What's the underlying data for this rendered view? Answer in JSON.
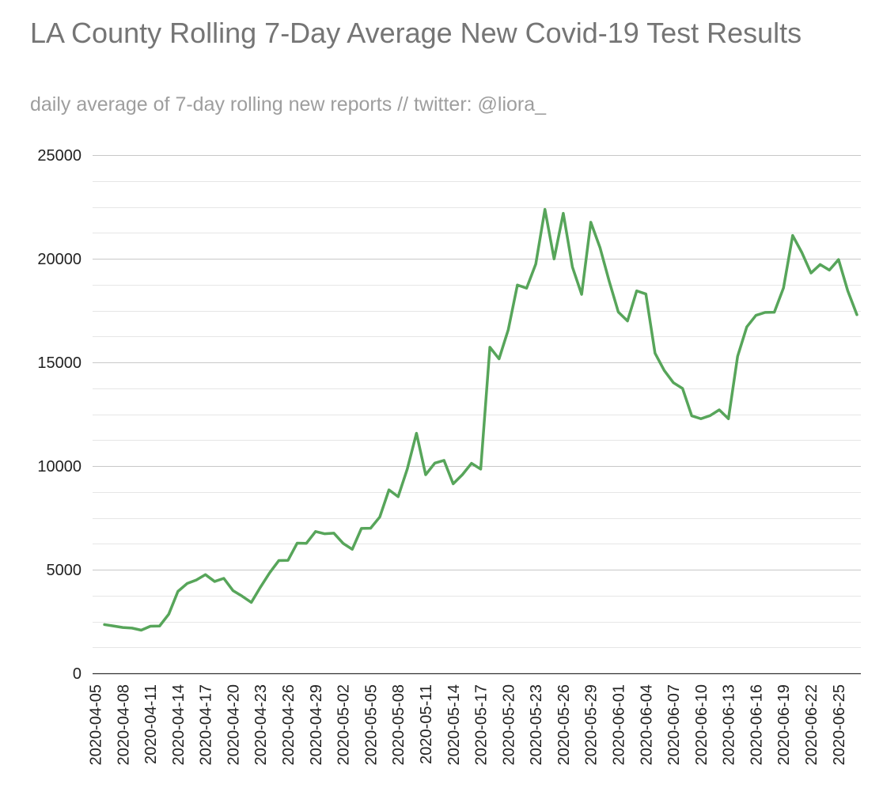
{
  "chart_data": {
    "type": "line",
    "title": "LA County Rolling 7-Day Average New Covid-19 Test Results",
    "subtitle": "daily average of 7-day rolling new reports // twitter: @liora_",
    "xlabel": "",
    "ylabel": "",
    "ylim": [
      0,
      25000
    ],
    "y_ticks": [
      "0",
      "5000",
      "10000",
      "15000",
      "20000",
      "25000"
    ],
    "grid": true,
    "x_tick_labels": [
      "2020-04-05",
      "2020-04-08",
      "2020-04-11",
      "2020-04-14",
      "2020-04-17",
      "2020-04-20",
      "2020-04-23",
      "2020-04-26",
      "2020-04-29",
      "2020-05-02",
      "2020-05-05",
      "2020-05-08",
      "2020-05-11",
      "2020-05-14",
      "2020-05-17",
      "2020-05-20",
      "2020-05-23",
      "2020-05-26",
      "2020-05-29",
      "2020-06-01",
      "2020-06-04",
      "2020-06-07",
      "2020-06-10",
      "2020-06-13",
      "2020-06-16",
      "2020-06-19",
      "2020-06-22",
      "2020-06-25"
    ],
    "x_start": "2020-04-05",
    "x_end": "2020-06-27",
    "series": [
      {
        "color": "#57a55a",
        "points": [
          [
            "2020-04-06",
            2350
          ],
          [
            "2020-04-07",
            2280
          ],
          [
            "2020-04-08",
            2210
          ],
          [
            "2020-04-09",
            2180
          ],
          [
            "2020-04-10",
            2080
          ],
          [
            "2020-04-11",
            2270
          ],
          [
            "2020-04-12",
            2280
          ],
          [
            "2020-04-13",
            2850
          ],
          [
            "2020-04-14",
            3950
          ],
          [
            "2020-04-15",
            4330
          ],
          [
            "2020-04-16",
            4500
          ],
          [
            "2020-04-17",
            4760
          ],
          [
            "2020-04-18",
            4430
          ],
          [
            "2020-04-19",
            4580
          ],
          [
            "2020-04-20",
            3990
          ],
          [
            "2020-04-21",
            3720
          ],
          [
            "2020-04-22",
            3420
          ],
          [
            "2020-04-23",
            4160
          ],
          [
            "2020-04-24",
            4850
          ],
          [
            "2020-04-25",
            5440
          ],
          [
            "2020-04-26",
            5450
          ],
          [
            "2020-04-27",
            6280
          ],
          [
            "2020-04-28",
            6270
          ],
          [
            "2020-04-29",
            6840
          ],
          [
            "2020-04-30",
            6730
          ],
          [
            "2020-05-01",
            6760
          ],
          [
            "2020-05-02",
            6270
          ],
          [
            "2020-05-03",
            5980
          ],
          [
            "2020-05-04",
            6990
          ],
          [
            "2020-05-05",
            7000
          ],
          [
            "2020-05-06",
            7540
          ],
          [
            "2020-05-07",
            8850
          ],
          [
            "2020-05-08",
            8520
          ],
          [
            "2020-05-09",
            9860
          ],
          [
            "2020-05-10",
            11580
          ],
          [
            "2020-05-11",
            9580
          ],
          [
            "2020-05-12",
            10140
          ],
          [
            "2020-05-13",
            10270
          ],
          [
            "2020-05-14",
            9140
          ],
          [
            "2020-05-15",
            9580
          ],
          [
            "2020-05-16",
            10130
          ],
          [
            "2020-05-17",
            9850
          ],
          [
            "2020-05-18",
            15730
          ],
          [
            "2020-05-19",
            15170
          ],
          [
            "2020-05-20",
            16570
          ],
          [
            "2020-05-21",
            18730
          ],
          [
            "2020-05-22",
            18580
          ],
          [
            "2020-05-23",
            19740
          ],
          [
            "2020-05-24",
            22380
          ],
          [
            "2020-05-25",
            19990
          ],
          [
            "2020-05-26",
            22190
          ],
          [
            "2020-05-27",
            19590
          ],
          [
            "2020-05-28",
            18280
          ],
          [
            "2020-05-29",
            21760
          ],
          [
            "2020-05-30",
            20540
          ],
          [
            "2020-05-31",
            18920
          ],
          [
            "2020-06-01",
            17430
          ],
          [
            "2020-06-02",
            17000
          ],
          [
            "2020-06-03",
            18450
          ],
          [
            "2020-06-04",
            18300
          ],
          [
            "2020-06-05",
            15440
          ],
          [
            "2020-06-06",
            14610
          ],
          [
            "2020-06-07",
            14020
          ],
          [
            "2020-06-08",
            13740
          ],
          [
            "2020-06-09",
            12420
          ],
          [
            "2020-06-10",
            12280
          ],
          [
            "2020-06-11",
            12430
          ],
          [
            "2020-06-12",
            12710
          ],
          [
            "2020-06-13",
            12280
          ],
          [
            "2020-06-14",
            15290
          ],
          [
            "2020-06-15",
            16710
          ],
          [
            "2020-06-16",
            17270
          ],
          [
            "2020-06-17",
            17410
          ],
          [
            "2020-06-18",
            17420
          ],
          [
            "2020-06-19",
            18590
          ],
          [
            "2020-06-20",
            21120
          ],
          [
            "2020-06-21",
            20300
          ],
          [
            "2020-06-22",
            19310
          ],
          [
            "2020-06-23",
            19720
          ],
          [
            "2020-06-24",
            19450
          ],
          [
            "2020-06-25",
            19960
          ],
          [
            "2020-06-26",
            18460
          ],
          [
            "2020-06-27",
            17300
          ]
        ]
      }
    ]
  }
}
